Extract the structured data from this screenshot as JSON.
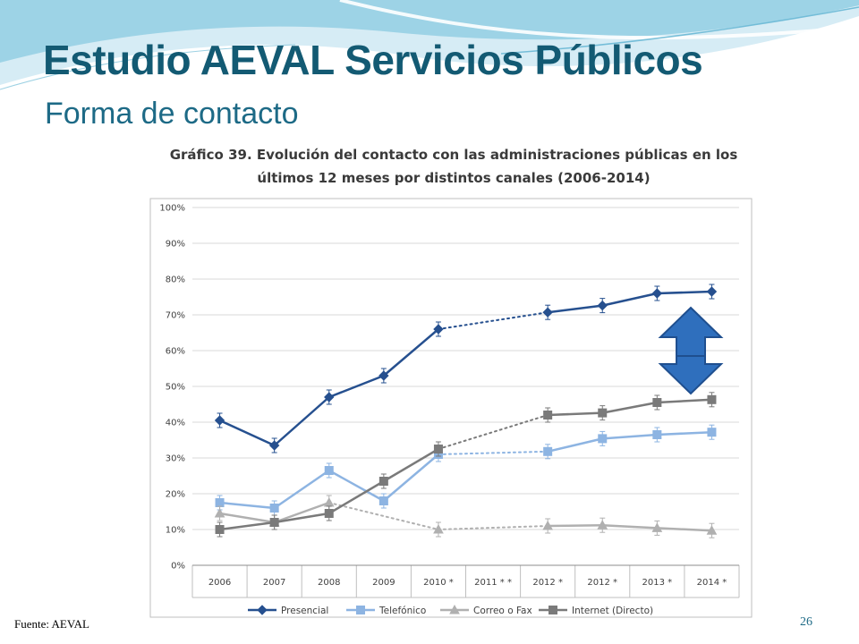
{
  "slide": {
    "title": "Estudio AEVAL Servicios Públicos",
    "subtitle": "Forma de contacto",
    "source": "Fuente: AEVAL",
    "page_number": "26"
  },
  "colors": {
    "title": "#135a73",
    "wave_light": "#bfe3ef",
    "wave_mid": "#7fc5dd",
    "arrow_fill": "#2f6fbd",
    "arrow_stroke": "#1f4f8f"
  },
  "icons": {
    "arrow": "double-arrow-vertical-icon"
  },
  "chart_data": {
    "type": "line",
    "title_lines": [
      "Gráfico 39. Evolución del contacto con las administraciones públicas en los",
      "últimos 12 meses por distintos canales (2006-2014)"
    ],
    "categories": [
      "2006",
      "2007",
      "2008",
      "2009",
      "2010 *",
      "2011 * *",
      "2012 *",
      "2012 *",
      "2013 *",
      "2014 *"
    ],
    "ylim": [
      0,
      100
    ],
    "y_ticks": [
      "0%",
      "10%",
      "20%",
      "30%",
      "40%",
      "50%",
      "60%",
      "70%",
      "80%",
      "90%",
      "100%"
    ],
    "grid": true,
    "legend_position": "bottom",
    "series": [
      {
        "name": "Presencial",
        "color": "#26508f",
        "marker": "diamond",
        "values": [
          40.5,
          33.5,
          47,
          53,
          66,
          null,
          70.7,
          72.6,
          76,
          76.5
        ]
      },
      {
        "name": "Telefónico",
        "color": "#8db4e2",
        "marker": "square",
        "values": [
          17.5,
          16,
          26.5,
          18,
          31,
          null,
          31.8,
          35.4,
          36.5,
          37.2
        ]
      },
      {
        "name": "Correo o Fax",
        "color": "#b0b0b0",
        "marker": "triangle",
        "values": [
          14.5,
          12,
          17.5,
          null,
          10,
          null,
          11,
          11.2,
          10.4,
          9.7
        ]
      },
      {
        "name": "Internet (Directo)",
        "color": "#7a7a7a",
        "marker": "square",
        "values": [
          10,
          12,
          14.5,
          23.5,
          32.5,
          null,
          42,
          42.6,
          45.5,
          46.3
        ]
      }
    ]
  }
}
